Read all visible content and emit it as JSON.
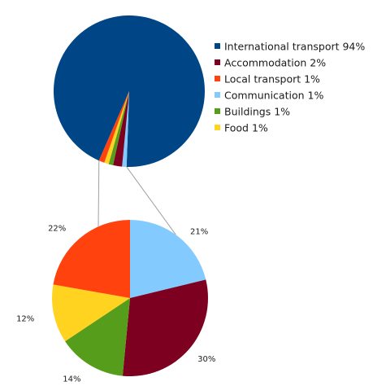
{
  "chart_data": [
    {
      "type": "pie",
      "legend_position": "right",
      "slices": [
        {
          "name": "International transport",
          "value": 94,
          "label": "International transport 94%",
          "color": "#004586"
        },
        {
          "name": "Accommodation",
          "value": 2,
          "label": "Accommodation 2%",
          "color": "#7e0021"
        },
        {
          "name": "Local transport",
          "value": 1,
          "label": "Local transport 1%",
          "color": "#ff420e"
        },
        {
          "name": "Communication",
          "value": 1,
          "label": "Communication 1%",
          "color": "#83caff"
        },
        {
          "name": "Buildings",
          "value": 1,
          "label": "Buildings 1%",
          "color": "#579d1c"
        },
        {
          "name": "Food",
          "value": 1,
          "label": "Food 1%",
          "color": "#ffd320"
        }
      ]
    },
    {
      "type": "pie",
      "slices": [
        {
          "name": "Communication",
          "value": 21,
          "label": "21%",
          "color": "#83caff"
        },
        {
          "name": "Accommodation",
          "value": 30,
          "label": "30%",
          "color": "#7e0021"
        },
        {
          "name": "Buildings",
          "value": 14,
          "label": "14%",
          "color": "#579d1c"
        },
        {
          "name": "Food",
          "value": 12,
          "label": "12%",
          "color": "#ffd320"
        },
        {
          "name": "Local transport",
          "value": 22,
          "label": "22%",
          "color": "#ff420e"
        }
      ]
    }
  ]
}
